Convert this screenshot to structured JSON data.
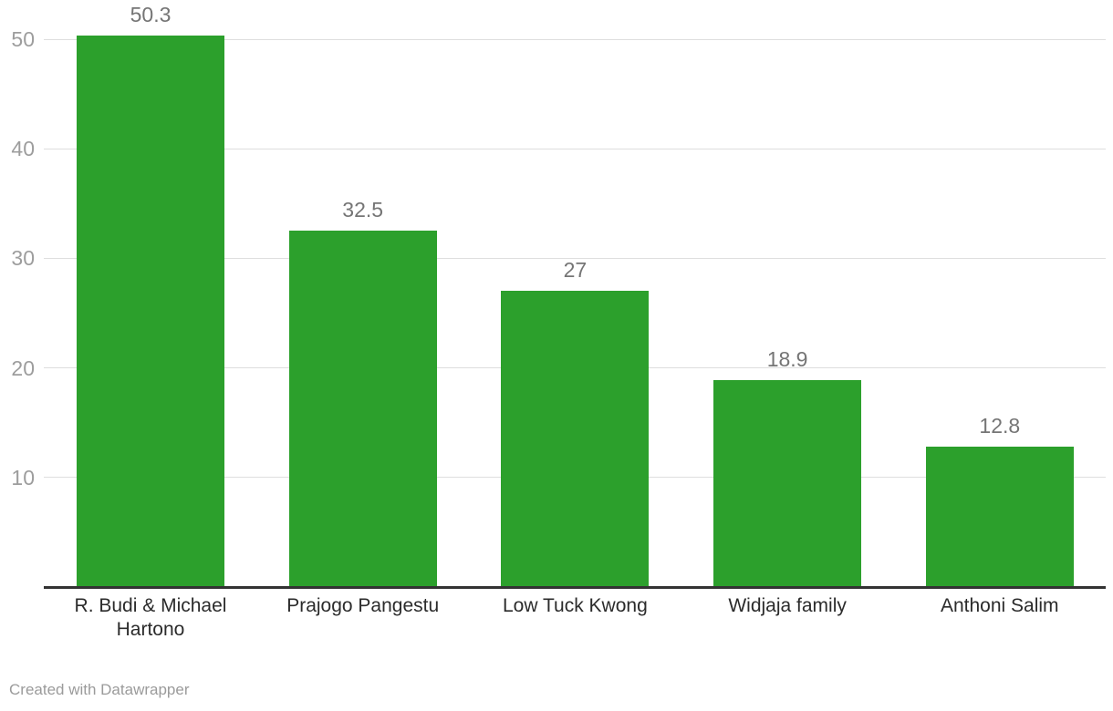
{
  "chart_data": {
    "type": "bar",
    "categories": [
      "R. Budi & Michael Hartono",
      "Prajogo Pangestu",
      "Low Tuck Kwong",
      "Widjaja family",
      "Anthoni Salim"
    ],
    "values": [
      50.3,
      32.5,
      27,
      18.9,
      12.8
    ],
    "value_labels": [
      "50.3",
      "32.5",
      "27",
      "18.9",
      "12.8"
    ],
    "title": "",
    "xlabel": "",
    "ylabel": "",
    "ylim": [
      0,
      53.5
    ],
    "yticks": [
      10,
      20,
      30,
      40,
      50
    ],
    "grid": true,
    "legend": "none",
    "colors": {
      "bar": "#2ca02c",
      "grid": "#dedede",
      "axis_line": "#333333",
      "tick_label": "#9d9d9d",
      "value_label": "#757575",
      "category_label": "#2b2b2b",
      "footer": "#9b9b9b"
    }
  },
  "footer": {
    "attribution": "Created with Datawrapper"
  }
}
